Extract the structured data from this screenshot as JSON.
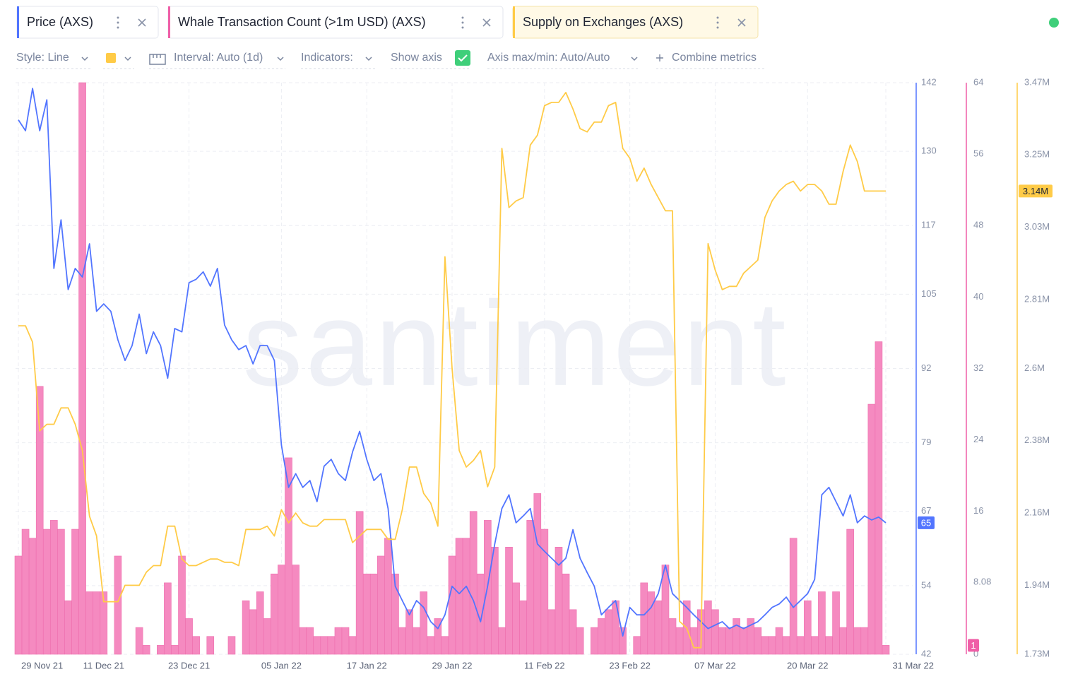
{
  "toolbar": {
    "style": "Style: Line",
    "interval": "Interval: Auto (1d)",
    "indicators": "Indicators:",
    "show_axis": "Show axis",
    "axis_range": "Axis max/min: Auto/Auto",
    "combine": "Combine metrics"
  },
  "watermark": "santiment",
  "chart_data": {
    "type": "line",
    "grid": true,
    "categories": [
      "29 Nov 21",
      null,
      null,
      null,
      null,
      null,
      null,
      null,
      null,
      null,
      null,
      null,
      "11 Dec 21",
      null,
      null,
      null,
      null,
      null,
      null,
      null,
      null,
      null,
      null,
      null,
      "23 Dec 21",
      null,
      null,
      null,
      null,
      null,
      null,
      null,
      null,
      null,
      null,
      null,
      null,
      "05 Jan 22",
      null,
      null,
      null,
      null,
      null,
      null,
      null,
      null,
      null,
      null,
      null,
      "17 Jan 22",
      null,
      null,
      null,
      null,
      null,
      null,
      null,
      null,
      null,
      null,
      null,
      "29 Jan 22",
      null,
      null,
      null,
      null,
      null,
      null,
      null,
      null,
      null,
      null,
      null,
      null,
      "11 Feb 22",
      null,
      null,
      null,
      null,
      null,
      null,
      null,
      null,
      null,
      null,
      null,
      "23 Feb 22",
      null,
      null,
      null,
      null,
      null,
      null,
      null,
      null,
      null,
      null,
      null,
      "07 Mar 22",
      null,
      null,
      null,
      null,
      null,
      null,
      null,
      null,
      null,
      null,
      null,
      null,
      "20 Mar 22",
      null,
      null,
      null,
      null,
      null,
      null,
      null,
      null,
      null,
      null,
      "31 Mar 22"
    ],
    "ylim": [
      42,
      142
    ],
    "yticks": [
      42,
      54,
      67,
      79,
      92,
      105,
      117,
      130,
      142
    ],
    "y2lim": [
      0,
      64
    ],
    "y2ticks": [
      0,
      8.08,
      16,
      24,
      32,
      40,
      48,
      56,
      64
    ],
    "y3lim": [
      1730000,
      3470000
    ],
    "y3ticks": [
      {
        "value": 1730000,
        "label": "1.73M"
      },
      {
        "value": 1940000,
        "label": "1.94M"
      },
      {
        "value": 2160000,
        "label": "2.16M"
      },
      {
        "value": 2380000,
        "label": "2.38M"
      },
      {
        "value": 2600000,
        "label": "2.6M"
      },
      {
        "value": 2810000,
        "label": "2.81M"
      },
      {
        "value": 3030000,
        "label": "3.03M"
      },
      {
        "value": 3250000,
        "label": "3.25M"
      },
      {
        "value": 3470000,
        "label": "3.47M"
      }
    ],
    "series": [
      {
        "name": "Price (AXS)",
        "type": "line",
        "axis": "y",
        "color": "#5275ff",
        "last_label": "65",
        "values": [
          135.5,
          133.6,
          141,
          133.6,
          139,
          109.5,
          118,
          105.8,
          109.5,
          108,
          113.8,
          102,
          103.3,
          102,
          97,
          93.4,
          96,
          101.5,
          94.6,
          98.4,
          96,
          90.3,
          99,
          98.4,
          107,
          107.6,
          108.9,
          106.4,
          109.5,
          99.6,
          97,
          95.3,
          96,
          92.8,
          96,
          96,
          93.4,
          78.6,
          71.2,
          73.6,
          71.2,
          72.4,
          68.7,
          74.9,
          76.1,
          73.6,
          72.4,
          77.4,
          81,
          76.1,
          72.4,
          73.6,
          67.5,
          53.9,
          51.4,
          48.9,
          51.4,
          50.2,
          47.7,
          46.5,
          48.9,
          53.9,
          52.6,
          53.9,
          51.4,
          47.7,
          53.9,
          61.3,
          67.5,
          69.9,
          65,
          66.2,
          67.5,
          61.3,
          60,
          58.8,
          57.6,
          58.8,
          63.8,
          58.8,
          56.3,
          53.9,
          48.9,
          50.2,
          51.4,
          45.2,
          50.2,
          48.9,
          48.9,
          50.2,
          52.6,
          57.6,
          52.6,
          51.4,
          50.2,
          48.9,
          47.7,
          46.5,
          47.1,
          47.7,
          46.5,
          47.1,
          46.5,
          47.1,
          47.7,
          48.9,
          50.2,
          50.8,
          52,
          50.2,
          51.4,
          52.6,
          55.1,
          69.9,
          71.2,
          68.7,
          66.2,
          69.9,
          65,
          66.2,
          65.5,
          66,
          65
        ]
      },
      {
        "name": "Whale Transaction Count (>1m USD) (AXS)",
        "type": "bar",
        "axis": "y2",
        "color": "#ef5fa7",
        "last_label": "1",
        "values": [
          11,
          14,
          13,
          30,
          14,
          15,
          14,
          6,
          14,
          64,
          7,
          7,
          7,
          0,
          11,
          0,
          0,
          3,
          1,
          0,
          1,
          8,
          1,
          11,
          4,
          2,
          0,
          2,
          0,
          0,
          2,
          0,
          6,
          5,
          7,
          4,
          9,
          10,
          22,
          10,
          3,
          3,
          2,
          2,
          2,
          3,
          3,
          2,
          16,
          9,
          9,
          11,
          13,
          9,
          3,
          5,
          3,
          7,
          2,
          4,
          2,
          11,
          13,
          13,
          16,
          9,
          15,
          12,
          3,
          12,
          8,
          6,
          15,
          18,
          14,
          5,
          12,
          9,
          5,
          3,
          0,
          3,
          4,
          5,
          6,
          3,
          0,
          2,
          8,
          7,
          6,
          10,
          4,
          3,
          6,
          3,
          5,
          6,
          5,
          3,
          3,
          4,
          3,
          4,
          3,
          2,
          2,
          3,
          2,
          13,
          2,
          6,
          2,
          7,
          2,
          7,
          3,
          14,
          3,
          3,
          28,
          35,
          1
        ]
      },
      {
        "name": "Supply on Exchanges (AXS)",
        "type": "line",
        "axis": "y3",
        "color": "#ffcb47",
        "last_label": "3.14M",
        "values": [
          2730000,
          2730000,
          2680000,
          2410000,
          2430000,
          2430000,
          2480000,
          2480000,
          2430000,
          2350000,
          2150000,
          2090000,
          1890000,
          1890000,
          1890000,
          1940000,
          1940000,
          1940000,
          1980000,
          2000000,
          2000000,
          2120000,
          2120000,
          2020000,
          2000000,
          2000000,
          2010000,
          2020000,
          2020000,
          2010000,
          2010000,
          2000000,
          2110000,
          2110000,
          2110000,
          2120000,
          2090000,
          2170000,
          2130000,
          2160000,
          2130000,
          2120000,
          2120000,
          2140000,
          2140000,
          2140000,
          2140000,
          2070000,
          2090000,
          2110000,
          2110000,
          2110000,
          2080000,
          2080000,
          2170000,
          2300000,
          2300000,
          2220000,
          2190000,
          2120000,
          2940000,
          2600000,
          2350000,
          2300000,
          2320000,
          2350000,
          2240000,
          2300000,
          3270000,
          3090000,
          3110000,
          3120000,
          3280000,
          3310000,
          3400000,
          3410000,
          3410000,
          3440000,
          3390000,
          3330000,
          3320000,
          3350000,
          3350000,
          3400000,
          3410000,
          3270000,
          3240000,
          3170000,
          3210000,
          3160000,
          3120000,
          3080000,
          3080000,
          1830000,
          1810000,
          1750000,
          1750000,
          2980000,
          2900000,
          2840000,
          2850000,
          2850000,
          2890000,
          2910000,
          2930000,
          3060000,
          3110000,
          3140000,
          3160000,
          3170000,
          3140000,
          3160000,
          3160000,
          3140000,
          3100000,
          3100000,
          3200000,
          3280000,
          3230000,
          3140000,
          3140000,
          3140000,
          3140000
        ]
      }
    ]
  }
}
